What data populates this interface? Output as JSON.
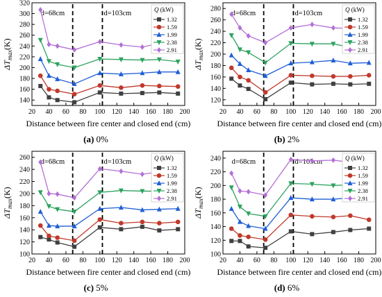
{
  "common": {
    "x_label": "Distance between fire center and closed end (cm)",
    "y_label_main": "ΔT",
    "y_label_sub": "max",
    "y_label_unit": "(K)",
    "legend_title_var": "Q",
    "legend_title_unit": " (kW)",
    "marker_d1": "d=68cm",
    "marker_d2": "d=103cm"
  },
  "colors": {
    "1.32": "#404040",
    "1.59": "#c0392b",
    "1.99": "#1f5fd6",
    "2.38": "#2ca25f",
    "2.91": "#b36fd6"
  },
  "chart_data": [
    {
      "type": "line",
      "id": "a",
      "caption_letter": "(a)",
      "caption_text": " 0%",
      "x": [
        30,
        40,
        50,
        70,
        100,
        125,
        150,
        170,
        192
      ],
      "xlim": [
        20,
        200
      ],
      "xticks": [
        20,
        40,
        60,
        80,
        100,
        120,
        140,
        160,
        180,
        200
      ],
      "ylim": [
        130,
        320
      ],
      "yticks": [
        140,
        160,
        180,
        200,
        220,
        240,
        260,
        280,
        300,
        320
      ],
      "vlines": [
        68,
        103
      ],
      "series": [
        {
          "name": "1.32",
          "marker": "square",
          "values": [
            166,
            145,
            140,
            136,
            154,
            152,
            153,
            154,
            152
          ]
        },
        {
          "name": "1.59",
          "marker": "circle",
          "values": [
            185,
            160,
            157,
            151,
            167,
            163,
            167,
            166,
            165
          ]
        },
        {
          "name": "1.99",
          "marker": "triangle-up",
          "values": [
            216,
            185,
            179,
            170,
            190,
            188,
            190,
            192,
            192
          ]
        },
        {
          "name": "2.38",
          "marker": "triangle-down",
          "values": [
            251,
            212,
            206,
            200,
            216,
            215,
            214,
            215,
            211
          ]
        },
        {
          "name": "2.91",
          "marker": "diamond",
          "values": [
            307,
            243,
            240,
            233,
            248,
            242,
            238,
            245,
            246
          ]
        }
      ]
    },
    {
      "type": "line",
      "id": "b",
      "caption_letter": "(b)",
      "caption_text": " 2%",
      "x": [
        30,
        40,
        50,
        70,
        100,
        125,
        150,
        170,
        192
      ],
      "xlim": [
        20,
        200
      ],
      "xticks": [
        20,
        40,
        60,
        80,
        100,
        120,
        140,
        160,
        180,
        200
      ],
      "ylim": [
        110,
        290
      ],
      "yticks": [
        120,
        140,
        160,
        180,
        200,
        220,
        240,
        260,
        280
      ],
      "vlines": [
        68,
        103
      ],
      "series": [
        {
          "name": "1.32",
          "marker": "square",
          "values": [
            157,
            145,
            139,
            121,
            150,
            147,
            148,
            147,
            148
          ]
        },
        {
          "name": "1.59",
          "marker": "circle",
          "values": [
            176,
            160,
            154,
            133,
            163,
            162,
            161,
            161,
            163
          ]
        },
        {
          "name": "1.99",
          "marker": "triangle-up",
          "values": [
            198,
            183,
            172,
            162,
            184,
            186,
            189,
            184,
            185
          ]
        },
        {
          "name": "2.38",
          "marker": "triangle-down",
          "values": [
            233,
            208,
            203,
            185,
            219,
            218,
            218,
            212,
            218
          ]
        },
        {
          "name": "2.91",
          "marker": "diamond",
          "values": [
            270,
            246,
            232,
            220,
            246,
            252,
            246,
            245,
            245
          ]
        }
      ]
    },
    {
      "type": "line",
      "id": "c",
      "caption_letter": "(c)",
      "caption_text": " 5%",
      "x": [
        30,
        40,
        50,
        70,
        100,
        125,
        150,
        170,
        192
      ],
      "xlim": [
        20,
        200
      ],
      "xticks": [
        20,
        40,
        60,
        80,
        100,
        120,
        140,
        160,
        180,
        200
      ],
      "ylim": [
        100,
        270
      ],
      "yticks": [
        100,
        120,
        140,
        160,
        180,
        200,
        220,
        240,
        260
      ],
      "vlines": [
        68,
        103
      ],
      "series": [
        {
          "name": "1.32",
          "marker": "square",
          "values": [
            128,
            124,
            119,
            112,
            144,
            141,
            145,
            139,
            141
          ]
        },
        {
          "name": "1.59",
          "marker": "circle",
          "values": [
            147,
            130,
            127,
            122,
            157,
            151,
            153,
            151,
            153
          ]
        },
        {
          "name": "1.99",
          "marker": "triangle-up",
          "values": [
            170,
            147,
            146,
            146,
            175,
            177,
            173,
            174,
            175
          ]
        },
        {
          "name": "2.38",
          "marker": "triangle-down",
          "values": [
            202,
            179,
            174,
            170,
            202,
            205,
            204,
            204,
            207
          ]
        },
        {
          "name": "2.91",
          "marker": "diamond",
          "values": [
            252,
            200,
            199,
            193,
            241,
            237,
            232,
            236,
            240
          ]
        }
      ]
    },
    {
      "type": "line",
      "id": "d",
      "caption_letter": "(d)",
      "caption_text": " 6%",
      "x": [
        30,
        40,
        50,
        70,
        100,
        125,
        150,
        170,
        192
      ],
      "xlim": [
        20,
        200
      ],
      "xticks": [
        20,
        40,
        60,
        80,
        100,
        120,
        140,
        160,
        180,
        200
      ],
      "ylim": [
        100,
        250
      ],
      "yticks": [
        100,
        120,
        140,
        160,
        180,
        200,
        220,
        240
      ],
      "vlines": [
        68,
        103
      ],
      "series": [
        {
          "name": "1.32",
          "marker": "square",
          "values": [
            119,
            119,
            111,
            109,
            133,
            129,
            132,
            135,
            137
          ]
        },
        {
          "name": "1.59",
          "marker": "circle",
          "values": [
            137,
            127,
            125,
            121,
            157,
            155,
            154,
            156,
            150
          ]
        },
        {
          "name": "1.99",
          "marker": "triangle-up",
          "values": [
            166,
            147,
            141,
            137,
            182,
            180,
            180,
            182,
            183
          ]
        },
        {
          "name": "2.38",
          "marker": "triangle-down",
          "values": [
            197,
            169,
            159,
            155,
            203,
            202,
            200,
            201,
            199
          ]
        },
        {
          "name": "2.91",
          "marker": "diamond",
          "values": [
            218,
            192,
            191,
            186,
            238,
            236,
            237,
            234,
            239
          ]
        }
      ]
    }
  ]
}
